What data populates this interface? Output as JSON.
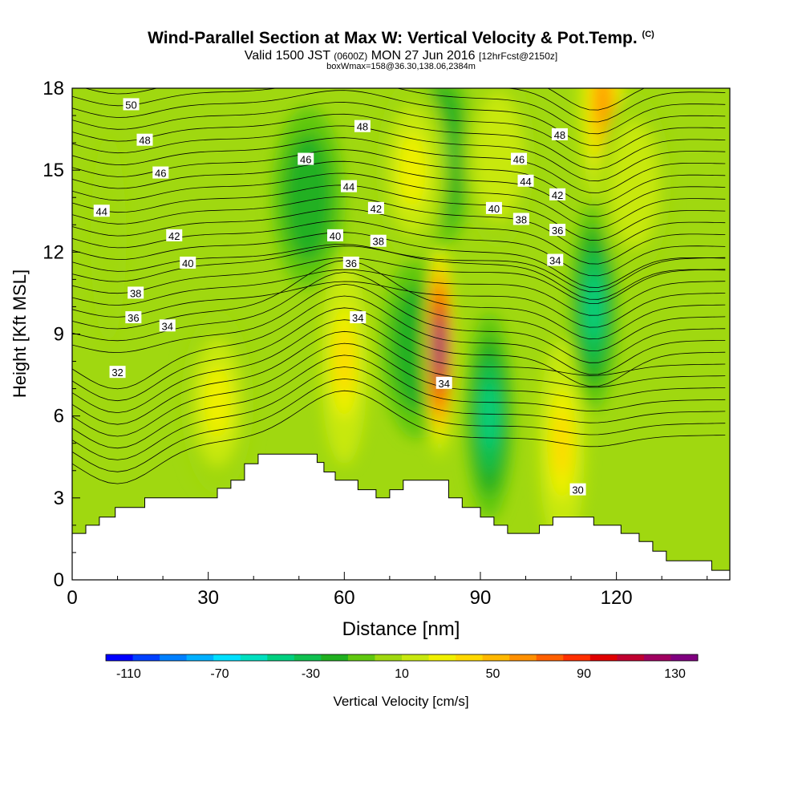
{
  "title": {
    "main": "Wind-Parallel Section at Max W: Vertical Velocity & Pot.Temp.",
    "copyright": "(C)",
    "valid_prefix": "Valid 1500 JST",
    "valid_z": "(0600Z)",
    "valid_date": "MON 27 Jun 2016",
    "forecast": "[12hrFcst@2150z]",
    "boxline": "boxWmax=158@36.30,138.06,2384m"
  },
  "chart_data": {
    "type": "heatmap",
    "xlabel": "Distance [nm]",
    "ylabel": "Height [Kft MSL]",
    "xlim": [
      0,
      145
    ],
    "ylim": [
      0,
      18
    ],
    "x_ticks": [
      0,
      30,
      60,
      90,
      120
    ],
    "y_ticks": [
      0,
      3,
      6,
      9,
      12,
      15,
      18
    ],
    "colorbar": {
      "label": "Vertical Velocity [cm/s]",
      "ticks": [
        -110,
        -70,
        -30,
        10,
        50,
        90,
        130
      ],
      "range": [
        -120,
        140
      ],
      "colors": [
        "#0000ff",
        "#0040ff",
        "#0080ff",
        "#00b0ff",
        "#00e0ff",
        "#00e0c0",
        "#00d080",
        "#10c050",
        "#20b020",
        "#60c810",
        "#a0d810",
        "#c8e810",
        "#f0f000",
        "#ffd800",
        "#ffb800",
        "#ff9000",
        "#ff6000",
        "#ff3000",
        "#e00000",
        "#c00030",
        "#a00060",
        "#800080"
      ]
    },
    "vertical_velocity_features": [
      {
        "x": 8,
        "y": 12.5,
        "w": 0
      },
      {
        "x": 32,
        "y": 6.5,
        "w": 25
      },
      {
        "x": 60,
        "y": 8,
        "w": 40
      },
      {
        "x": 52,
        "y": 14,
        "w": -25
      },
      {
        "x": 76,
        "y": 8.5,
        "w": -25
      },
      {
        "x": 81,
        "y": 8.5,
        "w": 140
      },
      {
        "x": 81,
        "y": 15.5,
        "w": -30
      },
      {
        "x": 75,
        "y": 15,
        "w": 25
      },
      {
        "x": 92,
        "y": 6,
        "w": -40
      },
      {
        "x": 108,
        "y": 5,
        "w": 40
      },
      {
        "x": 115,
        "y": 10,
        "w": -40
      },
      {
        "x": 117,
        "y": 17.5,
        "w": 60
      },
      {
        "x": 124,
        "y": 14.5,
        "w": 20
      },
      {
        "x": 94,
        "y": 15.5,
        "w": 20
      }
    ],
    "potential_temperature_levels": [
      30,
      32,
      34,
      36,
      38,
      40,
      42,
      44,
      46,
      48,
      50
    ],
    "contour_labels": [
      {
        "text": "50",
        "x": 13,
        "y": 17.4
      },
      {
        "text": "48",
        "x": 16,
        "y": 16.1
      },
      {
        "text": "46",
        "x": 19.5,
        "y": 14.9
      },
      {
        "text": "44",
        "x": 6.5,
        "y": 13.5
      },
      {
        "text": "42",
        "x": 22.5,
        "y": 12.6
      },
      {
        "text": "40",
        "x": 25.5,
        "y": 11.6
      },
      {
        "text": "38",
        "x": 14,
        "y": 10.5
      },
      {
        "text": "36",
        "x": 13.5,
        "y": 9.6
      },
      {
        "text": "34",
        "x": 21,
        "y": 9.3
      },
      {
        "text": "32",
        "x": 10,
        "y": 7.6
      },
      {
        "text": "48",
        "x": 64,
        "y": 16.6
      },
      {
        "text": "46",
        "x": 51.5,
        "y": 15.4
      },
      {
        "text": "44",
        "x": 61,
        "y": 14.4
      },
      {
        "text": "42",
        "x": 67,
        "y": 13.6
      },
      {
        "text": "40",
        "x": 58,
        "y": 12.6
      },
      {
        "text": "38",
        "x": 67.5,
        "y": 12.4
      },
      {
        "text": "36",
        "x": 61.5,
        "y": 11.6
      },
      {
        "text": "34",
        "x": 63,
        "y": 9.6
      },
      {
        "text": "34",
        "x": 82,
        "y": 7.2
      },
      {
        "text": "48",
        "x": 107.5,
        "y": 16.3
      },
      {
        "text": "46",
        "x": 98.5,
        "y": 15.4
      },
      {
        "text": "44",
        "x": 100,
        "y": 14.6
      },
      {
        "text": "42",
        "x": 107,
        "y": 14.1
      },
      {
        "text": "40",
        "x": 93,
        "y": 13.6
      },
      {
        "text": "38",
        "x": 99,
        "y": 13.2
      },
      {
        "text": "36",
        "x": 107,
        "y": 12.8
      },
      {
        "text": "34",
        "x": 106.5,
        "y": 11.7
      },
      {
        "text": "30",
        "x": 111.5,
        "y": 3.3
      }
    ],
    "terrain": [
      [
        0,
        1.7
      ],
      [
        3,
        1.7
      ],
      [
        3,
        2.0
      ],
      [
        6,
        2.0
      ],
      [
        6,
        2.3
      ],
      [
        9.5,
        2.3
      ],
      [
        9.5,
        2.65
      ],
      [
        16,
        2.65
      ],
      [
        16,
        3.0
      ],
      [
        32,
        3.0
      ],
      [
        32,
        3.35
      ],
      [
        35,
        3.35
      ],
      [
        35,
        3.65
      ],
      [
        38,
        3.65
      ],
      [
        38,
        4.25
      ],
      [
        41,
        4.25
      ],
      [
        41,
        4.6
      ],
      [
        54,
        4.6
      ],
      [
        54,
        4.3
      ],
      [
        55.5,
        4.3
      ],
      [
        55.5,
        3.95
      ],
      [
        58,
        3.95
      ],
      [
        58,
        3.65
      ],
      [
        63,
        3.65
      ],
      [
        63,
        3.3
      ],
      [
        67,
        3.3
      ],
      [
        67,
        3.0
      ],
      [
        70,
        3.0
      ],
      [
        70,
        3.3
      ],
      [
        73,
        3.3
      ],
      [
        73,
        3.65
      ],
      [
        83,
        3.65
      ],
      [
        83,
        3.0
      ],
      [
        86,
        3.0
      ],
      [
        86,
        2.65
      ],
      [
        90,
        2.65
      ],
      [
        90,
        2.3
      ],
      [
        93,
        2.3
      ],
      [
        93,
        2.0
      ],
      [
        96,
        2.0
      ],
      [
        96,
        1.7
      ],
      [
        103,
        1.7
      ],
      [
        103,
        2.0
      ],
      [
        106,
        2.0
      ],
      [
        106,
        2.3
      ],
      [
        115,
        2.3
      ],
      [
        115,
        2.0
      ],
      [
        121,
        2.0
      ],
      [
        121,
        1.7
      ],
      [
        125,
        1.7
      ],
      [
        125,
        1.4
      ],
      [
        128,
        1.4
      ],
      [
        128,
        1.05
      ],
      [
        131,
        1.05
      ],
      [
        131,
        0.7
      ],
      [
        141,
        0.7
      ],
      [
        141,
        0.35
      ],
      [
        145,
        0.35
      ]
    ]
  }
}
